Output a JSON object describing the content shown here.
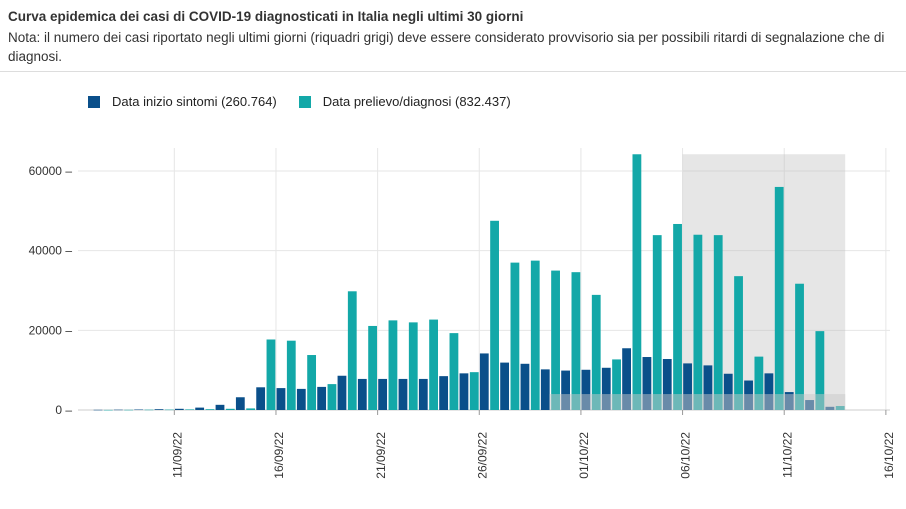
{
  "header": {
    "title": "Curva epidemica dei casi di COVID-19 diagnosticati in Italia negli ultimi 30 giorni",
    "note": "Nota: il numero dei casi riportato negli ultimi giorni (riquadri grigi) deve essere considerato provvisorio sia per possibili ritardi di segnalazione che di diagnosi."
  },
  "chart_data": {
    "type": "bar",
    "title": "Curva epidemica dei casi di COVID-19 diagnosticati in Italia negli ultimi 30 giorni",
    "legend_position": "top-left",
    "grid": true,
    "ylim": [
      0,
      66000
    ],
    "y_ticks": [
      0,
      20000,
      40000,
      60000
    ],
    "y_tick_labels": [
      "0",
      "20000",
      "40000",
      "60000"
    ],
    "x_ticks": [
      "11/09/22",
      "16/09/22",
      "21/09/22",
      "26/09/22",
      "01/10/22",
      "06/10/22",
      "11/10/22",
      "16/10/22"
    ],
    "x_start_date": "07/09/22",
    "categories": [
      "07/09/22",
      "08/09/22",
      "09/09/22",
      "10/09/22",
      "11/09/22",
      "12/09/22",
      "13/09/22",
      "14/09/22",
      "15/09/22",
      "16/09/22",
      "17/09/22",
      "18/09/22",
      "19/09/22",
      "20/09/22",
      "21/09/22",
      "22/09/22",
      "23/09/22",
      "24/09/22",
      "25/09/22",
      "26/09/22",
      "27/09/22",
      "28/09/22",
      "29/09/22",
      "30/09/22",
      "01/10/22",
      "02/10/22",
      "03/10/22",
      "04/10/22",
      "05/10/22",
      "06/10/22",
      "07/10/22",
      "08/10/22",
      "09/10/22",
      "10/10/22",
      "11/10/22",
      "12/10/22",
      "13/10/22"
    ],
    "series": [
      {
        "name": "Data inizio sintomi (260.764)",
        "color": "#0a4f8a",
        "values": [
          50,
          80,
          120,
          200,
          300,
          600,
          1300,
          3200,
          5700,
          5500,
          5300,
          5800,
          8600,
          7800,
          7800,
          7800,
          7800,
          8500,
          9200,
          14200,
          11900,
          11600,
          10200,
          9900,
          10100,
          10600,
          15500,
          13300,
          12800,
          11700,
          11200,
          9100,
          7400,
          9200,
          4500,
          2500,
          800
        ]
      },
      {
        "name": "Data prelievo/diagnosi (832.437)",
        "color": "#13a8a8",
        "values": [
          30,
          50,
          80,
          100,
          150,
          200,
          300,
          400,
          17700,
          17400,
          13800,
          6500,
          29800,
          21100,
          22500,
          22000,
          22700,
          19300,
          9500,
          47500,
          37000,
          37500,
          35000,
          34600,
          28900,
          12700,
          64200,
          43900,
          46700,
          44000,
          43900,
          33600,
          13400,
          56000,
          31700,
          19800,
          1000
        ]
      }
    ],
    "provisional_range": [
      "06/10/22",
      "13/10/22"
    ]
  },
  "legend": {
    "items": [
      {
        "label": "Data inizio sintomi (260.764)",
        "color": "#0a4f8a"
      },
      {
        "label": "Data prelievo/diagnosi (832.437)",
        "color": "#13a8a8"
      }
    ]
  }
}
